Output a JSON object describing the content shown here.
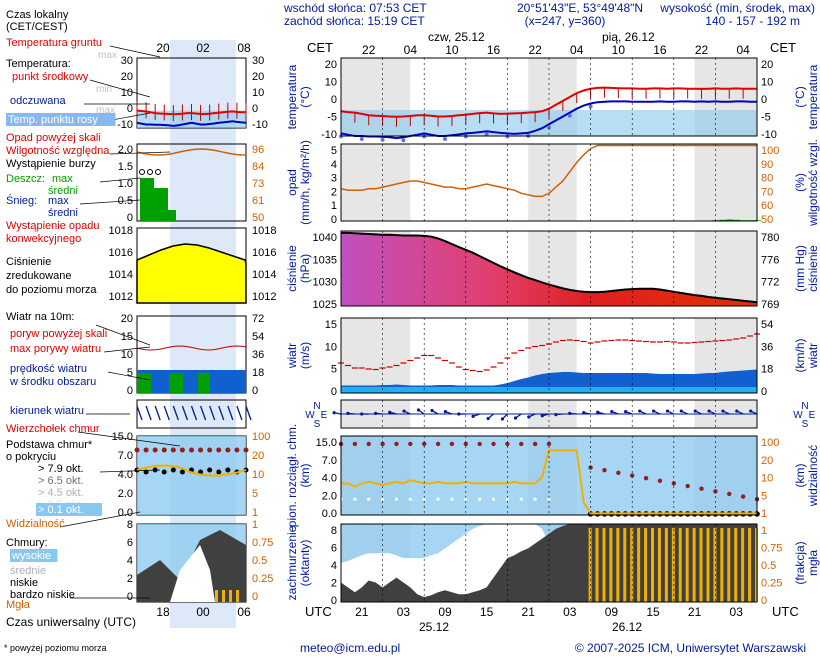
{
  "header": {
    "sunrise": "wschód słońca: 07:53 CET",
    "sunset": "zachód słońca: 15:19 CET",
    "coords": "20°51'43\"E, 53°49'48\"N",
    "grid": "(x=247, y=360)",
    "height_title": "wysokość (min, środek, max)",
    "height_values": "140 - 157 - 192 m"
  },
  "footer": {
    "note": "* powyżej poziomu morza",
    "email": "meteo@icm.edu.pl",
    "copyright": "© 2007-2025 ICM, Uniwersytet Warszawski"
  },
  "colors": {
    "red": "#e00000",
    "blue": "#0000c0",
    "orange": "#d06000",
    "lightblue": "#88c8f0",
    "green": "#00a000",
    "yellow": "#ffff00",
    "navy": "#001a9a",
    "gold": "#f0b000"
  },
  "legend": {
    "local_time": [
      "Czas lokalny",
      "(CET/CEST)"
    ],
    "local_ticks": [
      "20",
      "02",
      "08"
    ],
    "temp_ground": "Temperatura gruntu",
    "temp_max1": "max",
    "temp_min1": "min",
    "temp_heading": "Temperatura:",
    "temp_mid": "punkt środkowy",
    "temp_max2": "max",
    "temp_min2": "min",
    "temp_felt": "odczuwana",
    "temp_max3": "max",
    "temp_min3": "min",
    "temp_dew": "Temp. punktu rosy",
    "precip_above": "Opad powyżej skali",
    "humidity": "Wilgotność względna",
    "storm": "Wystąpienie burzy",
    "rain_max": "max",
    "rain_label": "Deszcz:",
    "rain_mid": "średni",
    "snow_label": "Śnieg:",
    "snow_max": "max",
    "snow_mid": "średni",
    "conv_precip": [
      "Wystąpienie opadu",
      "konwekcyjnego"
    ],
    "pressure": [
      "Ciśnienie",
      "zredukowane",
      "do poziomu morza"
    ],
    "wind_on": "Wiatr na 10m:",
    "gust_above": "poryw powyżej skali",
    "max_gust": "max porywy wiatru",
    "avg_wind": [
      "prędkość wiatru",
      "w środku obszaru"
    ],
    "wind_dir": "kierunek wiatru",
    "cloud_top": "Wierzchołek chmur",
    "cloud_base": [
      "Podstawa chmur*",
      "o pokryciu"
    ],
    "okt": [
      "> 7.9 okt.",
      "> 6.5 okt.",
      "> 4.5 okt.",
      "> 2.5 okt.",
      "> 0.1 okt."
    ],
    "visibility": "Widzialność",
    "clouds": "Chmury:",
    "cl_high": "wysokie",
    "cl_mid": "średnie",
    "cl_low": "niskie",
    "cl_vlow": "bardzo niskie",
    "fog": "Mgła",
    "utc_label": "Czas uniwersalny (UTC)",
    "utc_ticks": [
      "18",
      "00",
      "06"
    ],
    "mini_left_ticks": {
      "temp": [
        "30",
        "20",
        "10",
        "0",
        "-10"
      ],
      "precip": [
        "2.0",
        "1.5",
        "1.0",
        "0.5",
        "0"
      ],
      "press": [
        "1018",
        "1016",
        "1014",
        "1012"
      ],
      "wind": [
        "20",
        "15",
        "10",
        "5",
        "0"
      ],
      "cloud": [
        "15.0",
        "7.0",
        "4.0",
        "2.0",
        "0.0"
      ],
      "okt": [
        "8",
        "6",
        "4",
        "2",
        "0"
      ]
    },
    "mini_right_ticks": {
      "temp": [
        "30",
        "20",
        "10",
        "0",
        "-10"
      ],
      "hum": [
        "96",
        "84",
        "73",
        "61",
        "50"
      ],
      "press": [
        "1018",
        "1016",
        "1014",
        "1012"
      ],
      "wind": [
        "72",
        "54",
        "36",
        "18",
        "0"
      ],
      "vis": [
        "100",
        "20",
        "10",
        "5",
        "1"
      ],
      "fog": [
        "1",
        "0.75",
        "0.5",
        "0.25",
        "0"
      ]
    }
  },
  "main": {
    "cet": "CET",
    "date1": "czw, 25.12",
    "date2": "pią, 26.12",
    "cet_ticks": [
      "22",
      "04",
      "10",
      "16",
      "22",
      "04",
      "10",
      "16",
      "22",
      "04"
    ],
    "utc": "UTC",
    "utc_ticks": [
      "21",
      "03",
      "09",
      "15",
      "21",
      "03",
      "09",
      "15",
      "21",
      "03"
    ],
    "utc_date1": "25.12",
    "utc_date2": "26.12",
    "side_labels": {
      "temp_l": [
        "temperatura",
        "(°C)"
      ],
      "temp_r": [
        "(°C)",
        "temperatura"
      ],
      "precip_l": [
        "opad",
        "(mm/h, kg/m²/h)"
      ],
      "precip_r": [
        "(%)",
        "wilgotność wzgl."
      ],
      "press_l": [
        "ciśnienie",
        "(hPa)"
      ],
      "press_r": [
        "(mm Hg)",
        "ciśnienie"
      ],
      "wind_l": [
        "wiatr",
        "(m/s)"
      ],
      "wind_r": [
        "(km/h)",
        "wiatr"
      ],
      "cloud_l": [
        "pion. rozciągł. chm.",
        "(km)"
      ],
      "cloud_r": [
        "(km)",
        "widzialność"
      ],
      "cover_l": [
        "zachmurzenie",
        "(oktanty)"
      ],
      "cover_r": [
        "(frakcja)",
        "mgła"
      ]
    },
    "ticks": {
      "temp_l": [
        "20",
        "10",
        "0",
        "-5",
        "-10"
      ],
      "temp_r": [
        "20",
        "10",
        "0",
        "-5",
        "-10"
      ],
      "precip_l": [
        "5",
        "4",
        "3",
        "2",
        "1",
        "0"
      ],
      "precip_r": [
        "100",
        "90",
        "80",
        "70",
        "60",
        "50"
      ],
      "press_l": [
        "1040",
        "1035",
        "1030",
        "1025"
      ],
      "press_r": [
        "780",
        "776",
        "772",
        "769"
      ],
      "wind_l": [
        "15",
        "10",
        "5",
        "0"
      ],
      "wind_r": [
        "54",
        "36",
        "18",
        "0"
      ],
      "cloud_l": [
        "15.0",
        "7.0",
        "4.0",
        "2.0",
        "0.0"
      ],
      "cloud_r": [
        "100",
        "20",
        "10",
        "5",
        "1"
      ],
      "cover_l": [
        "8",
        "6",
        "4",
        "2",
        "0"
      ],
      "cover_r": [
        "1",
        "0.75",
        "0.5",
        "0.25",
        "0"
      ]
    },
    "wind_dir_labels": {
      "n": "N",
      "w": "W",
      "e": "E",
      "s": "S"
    }
  },
  "chart_data": {
    "type": "line",
    "x_hours_utc": [
      18,
      19,
      20,
      21,
      22,
      23,
      0,
      1,
      2,
      3,
      4,
      5,
      6,
      7,
      8,
      9,
      10,
      11,
      12,
      13,
      14,
      15,
      16,
      17,
      18,
      19,
      20,
      21,
      22,
      23,
      0,
      1,
      2,
      3,
      4,
      5,
      6,
      7,
      8,
      9,
      10,
      11,
      12,
      13,
      14,
      15,
      16,
      17,
      18,
      19,
      20,
      21,
      22,
      23,
      0,
      1,
      2,
      3,
      4,
      5,
      6
    ],
    "temperature_c": [
      -0.5,
      -0.8,
      -1,
      -1.5,
      -2,
      -2.2,
      -2.3,
      -2.5,
      -2.6,
      -2.5,
      -2.3,
      -2,
      -2,
      -2.2,
      -2.5,
      -2.5,
      -2.3,
      -2,
      -1.8,
      -1.5,
      -1.2,
      -1,
      -1.3,
      -1.5,
      -1.4,
      -1.3,
      -1.2,
      -1,
      -0.8,
      -0.5,
      0.5,
      2,
      3.5,
      5,
      6.5,
      7.5,
      8.2,
      8.5,
      8.6,
      8.5,
      8.4,
      8.3,
      8.3,
      8.2,
      8.2,
      8.3,
      8.3,
      8.2,
      8.3,
      8.3,
      8.2,
      8.2,
      8.1,
      8.2,
      8.3,
      8.2,
      8.2,
      8.3,
      8.2,
      8.2,
      8.2
    ],
    "felt_c": [
      -9,
      -9.5,
      -10,
      -10,
      -10.2,
      -10.2,
      -10.3,
      -10.5,
      -10.8,
      -10.5,
      -10,
      -9.5,
      -9,
      -9.5,
      -10,
      -10,
      -9.7,
      -9.4,
      -9,
      -8.8,
      -8.5,
      -8.2,
      -8.5,
      -8.8,
      -9,
      -9.2,
      -9,
      -8.8,
      -8,
      -7,
      -5.5,
      -4,
      -2.5,
      -1,
      0.5,
      1.7,
      2.5,
      3,
      3.2,
      3.3,
      3.3,
      3.3,
      3.2,
      3.2,
      3.2,
      3.2,
      3.3,
      3.2,
      3.2,
      3.3,
      3.3,
      3.2,
      3.3,
      3.2,
      3.3,
      3.2,
      3.2,
      3.3,
      3.3,
      3.2,
      3.2
    ],
    "humidity_pct": [
      71,
      70,
      70,
      70,
      71,
      71,
      72,
      73,
      74,
      75,
      76,
      76,
      75,
      74,
      73,
      72,
      72,
      71,
      71,
      72,
      73,
      74,
      73,
      72,
      71,
      70,
      68,
      67,
      66,
      66,
      68,
      72,
      76,
      82,
      88,
      93,
      97,
      99,
      99,
      99,
      99,
      99,
      99,
      99,
      99,
      99,
      99,
      99,
      99,
      99,
      99,
      99,
      99,
      99,
      99,
      99,
      99,
      99,
      99,
      99,
      99
    ],
    "precipitation_mm_h": [
      0,
      0,
      0,
      0,
      0,
      0,
      0,
      0,
      0,
      0,
      0,
      0,
      0,
      0,
      0,
      0,
      0,
      0,
      0,
      0,
      0,
      0,
      0,
      0,
      0,
      0,
      0,
      0,
      0,
      0,
      0,
      0,
      0,
      0,
      0,
      0,
      0,
      0,
      0,
      0,
      0,
      0,
      0,
      0,
      0,
      0,
      0,
      0,
      0,
      0,
      0,
      0,
      0,
      0,
      0.05,
      0.08,
      0.1,
      0.08,
      0.05,
      0.05,
      0.05
    ],
    "pressure_hpa": [
      1041.5,
      1041.5,
      1041.4,
      1041.3,
      1041.2,
      1041.1,
      1041,
      1041,
      1040.9,
      1040.8,
      1040.8,
      1040.8,
      1040.7,
      1040.5,
      1040,
      1039.3,
      1038.5,
      1037.7,
      1037,
      1036.2,
      1035.3,
      1034.4,
      1033.5,
      1032.6,
      1031.8,
      1031,
      1030.2,
      1029.5,
      1028.9,
      1028.3,
      1027.7,
      1027.2,
      1026.7,
      1026.3,
      1026,
      1025.8,
      1025.7,
      1025.7,
      1025.8,
      1026,
      1026.2,
      1026.4,
      1026.5,
      1026.6,
      1026.6,
      1026.6,
      1026.4,
      1026.1,
      1025.8,
      1025.5,
      1025.2,
      1024.9,
      1024.7,
      1024.4,
      1024.2,
      1024,
      1023.8,
      1023.6,
      1023.4,
      1023.2,
      1023
    ],
    "wind_ms": [
      1.5,
      1.5,
      1.5,
      1.5,
      1.5,
      1.5,
      1.6,
      1.6,
      1.7,
      1.6,
      1.5,
      1.5,
      1.5,
      1.5,
      1.6,
      1.6,
      1.6,
      1.5,
      1.5,
      1.5,
      1.5,
      1.5,
      1.5,
      1.7,
      2,
      2.4,
      2.8,
      3.1,
      3.5,
      3.8,
      4,
      4.1,
      4.2,
      4.2,
      4.1,
      4,
      4,
      4,
      4,
      4,
      4,
      4,
      4,
      4,
      4,
      3.9,
      3.8,
      3.8,
      3.8,
      3.8,
      3.8,
      3.8,
      3.9,
      4,
      4,
      4.2,
      4.3,
      4.4,
      4.5,
      4.6,
      4.7
    ],
    "gust_ms": [
      6,
      5.5,
      5,
      5,
      4.8,
      4.7,
      5,
      5.2,
      5.5,
      6,
      6.5,
      7,
      7.5,
      7.5,
      7,
      6.5,
      6,
      5.2,
      4.7,
      4.5,
      4.3,
      4.6,
      5.2,
      6,
      7,
      8,
      8.5,
      9,
      9.3,
      9.5,
      9.8,
      10.2,
      10.5,
      10.6,
      10.5,
      10.3,
      10,
      10.2,
      10.4,
      10.5,
      10.6,
      10.6,
      10.5,
      10.4,
      10.3,
      10.2,
      10.2,
      10.3,
      10.2,
      10,
      10,
      10.1,
      10.2,
      10.3,
      10.4,
      10.5,
      10.6,
      10.8,
      11,
      11.4,
      11.8
    ],
    "visibility_km": [
      2,
      2,
      1.8,
      2,
      2.1,
      2,
      1.9,
      2,
      2.1,
      2,
      2.2,
      2.1,
      2,
      2,
      2.1,
      2,
      2,
      2,
      2.1,
      2,
      2,
      2,
      2,
      2,
      2,
      2.1,
      2,
      2,
      2,
      2.4,
      4.1,
      4.1,
      4.1,
      4.1,
      4.1,
      0.8,
      0.1,
      0.1,
      0.1,
      0.1,
      0.1,
      0.1,
      0.1,
      0.1,
      0.1,
      0.1,
      0.1,
      0.1,
      0.1,
      0.1,
      0.1,
      0.1,
      0.1,
      0.1,
      0.1,
      0.1,
      0.1,
      0.1,
      0.1,
      0.1,
      0.1
    ],
    "fog_fraction": [
      0,
      0,
      0,
      0,
      0,
      0,
      0,
      0,
      0,
      0,
      0,
      0,
      0,
      0,
      0,
      0,
      0,
      0,
      0,
      0,
      0,
      0,
      0,
      0,
      0,
      0,
      0,
      0,
      0,
      0,
      0,
      0,
      0,
      0,
      0,
      0,
      0.95,
      0.95,
      0.95,
      0.95,
      0.95,
      0.95,
      0.95,
      0.95,
      0.95,
      0.95,
      0.95,
      0.95,
      0.95,
      0.95,
      0.95,
      0.95,
      0.95,
      0.95,
      0.95,
      0.95,
      0.95,
      0.95,
      0.95,
      0.95,
      0.95
    ],
    "low_cloud_okt": [
      2,
      1.5,
      1,
      1.5,
      2.2,
      2,
      1.5,
      2,
      2.5,
      2,
      1.5,
      0.8,
      0.5,
      0.7,
      1,
      1.2,
      1,
      0.8,
      0.8,
      1,
      1.2,
      1.5,
      2.5,
      3.5,
      4.5,
      4.8,
      5.2,
      5.5,
      6,
      6.5,
      7,
      7.5,
      7.8,
      8,
      8,
      8,
      8,
      8,
      8,
      8,
      8,
      8,
      8,
      8,
      8,
      8,
      8,
      8,
      8,
      8,
      8,
      8,
      8,
      8,
      8,
      8,
      8,
      8,
      8,
      8,
      8
    ],
    "high_cloud_okt": [
      4,
      4.2,
      4.5,
      4.8,
      5,
      5,
      5,
      5,
      4.8,
      4.5,
      4.5,
      4.5,
      4.5,
      4.8,
      5,
      5.5,
      6,
      6.5,
      7,
      7.5,
      7.8,
      8,
      8,
      8,
      8,
      8,
      8,
      8,
      8,
      7.5,
      6,
      3,
      0,
      0,
      0,
      0,
      0,
      0,
      0,
      0,
      0,
      0,
      0,
      0,
      0,
      0,
      0,
      0,
      0,
      0,
      0,
      0,
      0,
      0,
      0,
      0,
      0,
      0,
      0,
      0,
      0
    ],
    "wind_direction_deg": [
      100,
      100,
      95,
      95,
      90,
      90,
      95,
      100,
      105,
      110,
      115,
      120,
      125,
      125,
      120,
      115,
      110,
      100,
      90,
      80,
      70,
      60,
      50,
      45,
      45,
      50,
      55,
      60,
      65,
      70,
      75,
      80,
      85,
      90,
      95,
      95,
      100,
      100,
      105,
      105,
      110,
      110,
      110,
      115,
      115,
      115,
      115,
      115,
      115,
      115,
      115,
      115,
      115,
      115,
      115,
      115,
      115,
      115,
      115,
      115,
      115
    ],
    "ylim": {
      "temp": [
        -10,
        20
      ],
      "precip": [
        0,
        5
      ],
      "humidity": [
        50,
        100
      ],
      "pressure": [
        1022,
        1042
      ],
      "wind": [
        0,
        15
      ],
      "cloud_km": [
        0,
        15
      ],
      "okt": [
        0,
        8
      ]
    }
  }
}
